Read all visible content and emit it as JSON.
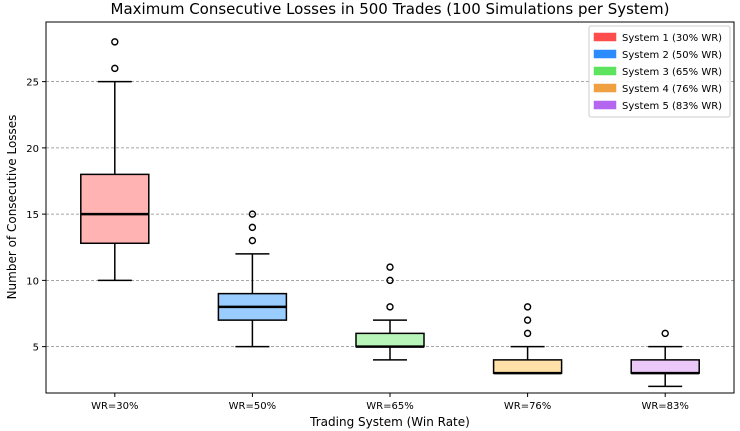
{
  "chart_data": {
    "type": "box",
    "title": "Maximum Consecutive Losses in 500 Trades (100 Simulations per System)",
    "xlabel": "Trading System (Win Rate)",
    "ylabel": "Number of Consecutive Losses",
    "ylim": [
      1.5,
      29.5
    ],
    "yticks": [
      5,
      10,
      15,
      20,
      25
    ],
    "grid": "y-dashed",
    "legend_position": "top-right",
    "categories": [
      "WR=30%",
      "WR=50%",
      "WR=65%",
      "WR=76%",
      "WR=83%"
    ],
    "series": [
      {
        "name": "System 1 (30% WR)",
        "color": "#ff4d4d",
        "fill": "#ffb3b3",
        "q1": 12.8,
        "median": 15,
        "q3": 18,
        "whisker_low": 10,
        "whisker_high": 25,
        "outliers": [
          26,
          28
        ]
      },
      {
        "name": "System 2 (50% WR)",
        "color": "#2a8cff",
        "fill": "#99ccff",
        "q1": 7,
        "median": 8,
        "q3": 9,
        "whisker_low": 5,
        "whisker_high": 12,
        "outliers": [
          13,
          14,
          15
        ]
      },
      {
        "name": "System 3 (65% WR)",
        "color": "#5de35d",
        "fill": "#b8f5b8",
        "q1": 5,
        "median": 5,
        "q3": 6,
        "whisker_low": 4,
        "whisker_high": 7,
        "outliers": [
          8,
          10,
          11
        ]
      },
      {
        "name": "System 4 (76% WR)",
        "color": "#f0a040",
        "fill": "#ffe0a8",
        "q1": 3,
        "median": 3,
        "q3": 4,
        "whisker_low": 3,
        "whisker_high": 5,
        "outliers": [
          6,
          7,
          8
        ]
      },
      {
        "name": "System 5 (83% WR)",
        "color": "#b566f0",
        "fill": "#ecc8f8",
        "q1": 3,
        "median": 3,
        "q3": 4,
        "whisker_low": 2,
        "whisker_high": 5,
        "outliers": [
          6
        ]
      }
    ]
  }
}
